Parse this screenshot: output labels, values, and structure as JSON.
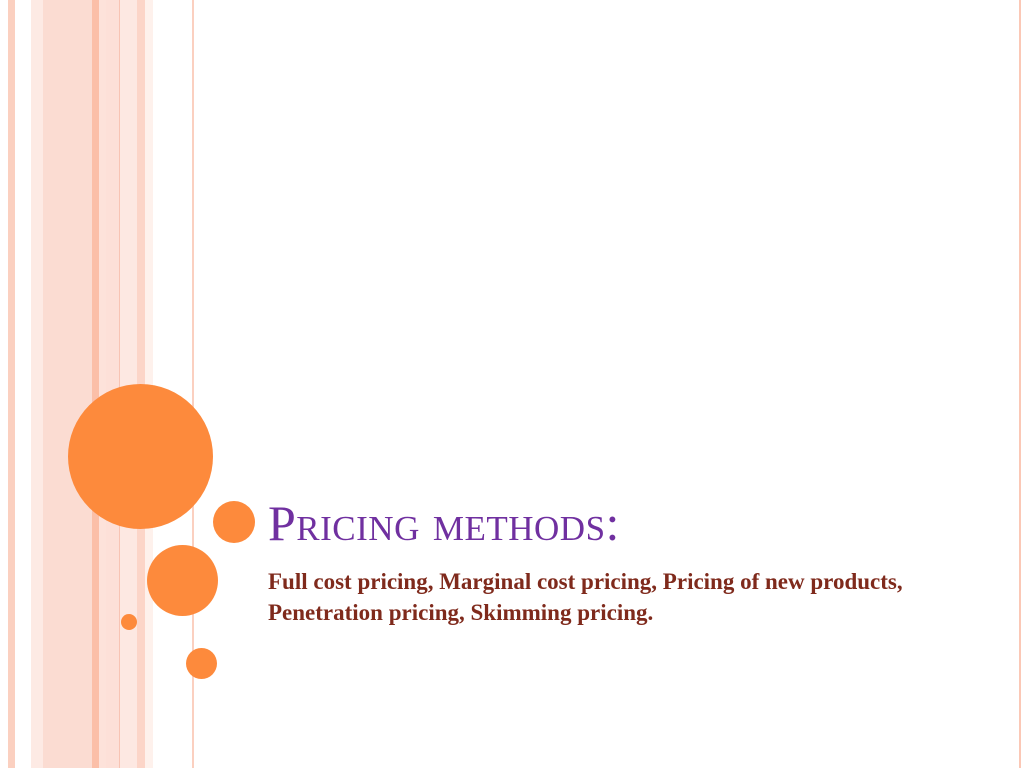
{
  "slide": {
    "title": "Pricing methods:",
    "subtitle": "Full cost pricing, Marginal cost pricing, Pricing of new products, Penetration pricing, Skimming pricing."
  },
  "colors": {
    "accent_circles": "#fd8a3c",
    "title": "#7030a0",
    "subtitle": "#7f2a1c",
    "stripes": "#fbd0c0"
  }
}
